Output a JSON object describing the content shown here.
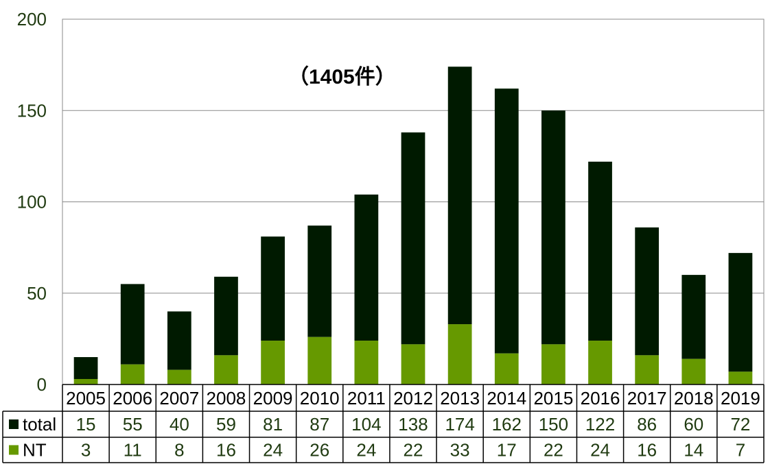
{
  "chart_data": {
    "type": "bar",
    "stacked": true,
    "categories": [
      "2005",
      "2006",
      "2007",
      "2008",
      "2009",
      "2010",
      "2011",
      "2012",
      "2013",
      "2014",
      "2015",
      "2016",
      "2017",
      "2018",
      "2019"
    ],
    "series": [
      {
        "name": "total",
        "values": [
          15,
          55,
          40,
          59,
          81,
          87,
          104,
          138,
          174,
          162,
          150,
          122,
          86,
          60,
          72
        ],
        "color": "#001a00"
      },
      {
        "name": "NT",
        "values": [
          3,
          11,
          8,
          16,
          24,
          26,
          24,
          22,
          33,
          17,
          22,
          24,
          16,
          14,
          7
        ],
        "color": "#669900"
      }
    ],
    "ylim": [
      0,
      200
    ],
    "yticks": [
      "0",
      "50",
      "100",
      "150",
      "200"
    ],
    "annotation": "（1405件）",
    "grid": true,
    "data_table": true
  }
}
